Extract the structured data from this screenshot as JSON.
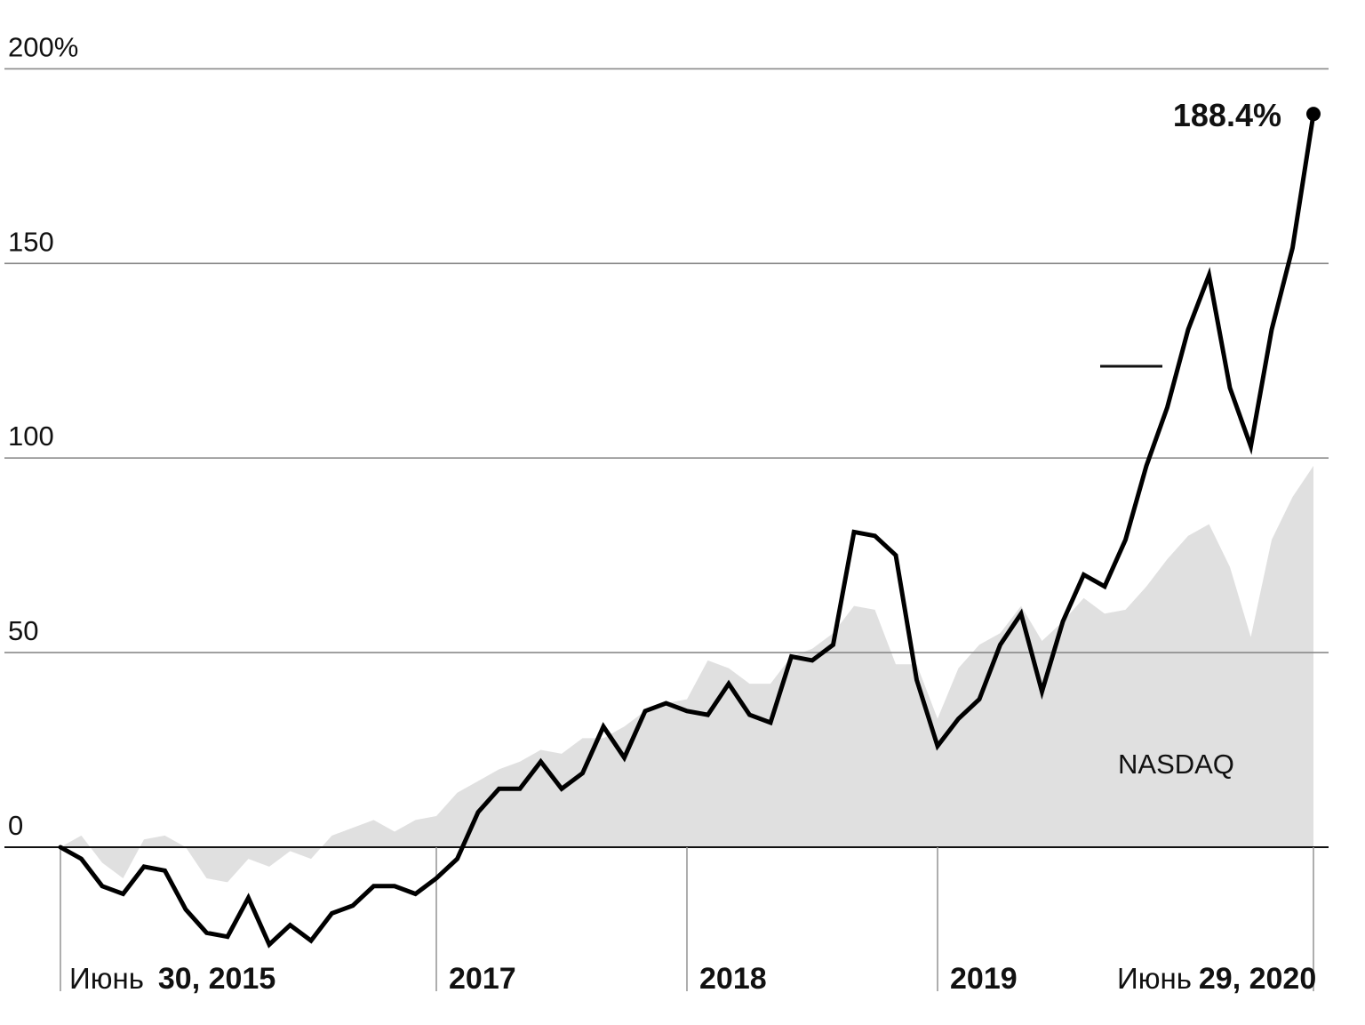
{
  "chart_data": {
    "type": "line",
    "title": "",
    "xlabel": "",
    "ylabel": "",
    "ylim": [
      -25,
      200
    ],
    "yticks": [
      {
        "value": 200,
        "label": "200%"
      },
      {
        "value": 150,
        "label": "150"
      },
      {
        "value": 100,
        "label": "100"
      },
      {
        "value": 50,
        "label": "50"
      },
      {
        "value": 0,
        "label": "0"
      }
    ],
    "xticks": [
      {
        "value": 0,
        "month": "Июнь",
        "date": "30, 2015"
      },
      {
        "value": 18,
        "month": "",
        "date": "2017"
      },
      {
        "value": 30,
        "month": "",
        "date": "2018"
      },
      {
        "value": 42,
        "month": "",
        "date": "2019"
      },
      {
        "value": 60,
        "month": "Июнь",
        "date": "29, 2020"
      }
    ],
    "x": [
      0,
      1,
      2,
      3,
      4,
      5,
      6,
      7,
      8,
      9,
      10,
      11,
      12,
      13,
      14,
      15,
      16,
      17,
      18,
      19,
      20,
      21,
      22,
      23,
      24,
      25,
      26,
      27,
      28,
      29,
      30,
      31,
      32,
      33,
      34,
      35,
      36,
      37,
      38,
      39,
      40,
      41,
      42,
      43,
      44,
      45,
      46,
      47,
      48,
      49,
      50,
      51,
      52,
      53,
      54,
      55,
      56,
      57,
      58,
      59,
      60
    ],
    "grid": true,
    "series": [
      {
        "name": "",
        "style": "line",
        "color": "#000000",
        "values": [
          0,
          -3,
          -10,
          -12,
          -5,
          -6,
          -16,
          -22,
          -23,
          -13,
          -25,
          -20,
          -24,
          -17,
          -15,
          -10,
          -10,
          -12,
          -8,
          -3,
          9,
          15,
          15,
          22,
          15,
          19,
          31,
          23,
          35,
          37,
          35,
          34,
          42,
          34,
          32,
          49,
          48,
          52,
          81,
          80,
          75,
          43,
          26,
          33,
          38,
          52,
          60,
          40,
          58,
          70,
          67,
          79,
          98,
          113,
          133,
          147,
          118,
          103,
          133,
          154,
          188.4
        ],
        "end_label": "188.4%"
      },
      {
        "name": "NASDAQ",
        "style": "area",
        "color": "#e0e0e0",
        "values": [
          0,
          3,
          -4,
          -8,
          2,
          3,
          0,
          -8,
          -9,
          -3,
          -5,
          -1,
          -3,
          3,
          5,
          7,
          4,
          7,
          8,
          14,
          17,
          20,
          22,
          25,
          24,
          28,
          28,
          31,
          35,
          37,
          38,
          48,
          46,
          42,
          42,
          49,
          51,
          55,
          62,
          61,
          47,
          47,
          33,
          46,
          52,
          55,
          62,
          53,
          58,
          64,
          60,
          61,
          67,
          74,
          80,
          83,
          72,
          54,
          79,
          90,
          98
        ]
      }
    ]
  }
}
